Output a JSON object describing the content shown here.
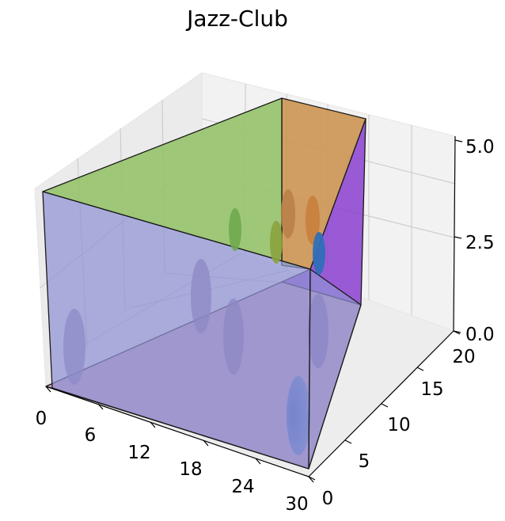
{
  "title": "Jazz-Club",
  "axes": {
    "x": {
      "ticks": [
        "0",
        "6",
        "12",
        "18",
        "24",
        "30"
      ]
    },
    "y": {
      "ticks": [
        "0",
        "5",
        "10",
        "15",
        "20"
      ]
    },
    "z": {
      "ticks": [
        "0.0",
        "2.5",
        "5.0"
      ]
    }
  },
  "colors": {
    "floor": "#c79fb8",
    "front_wall": "#8f92d4",
    "ceiling": "#97c36e",
    "right_wall_upper": "#cc9352",
    "right_wall_lower": "#8b3fd0",
    "fixture_purple": "#8a7aa6",
    "fixture_green": "#6fa84e",
    "fixture_orange": "#c9803e",
    "fixture_blue": "#3f6fc0"
  }
}
